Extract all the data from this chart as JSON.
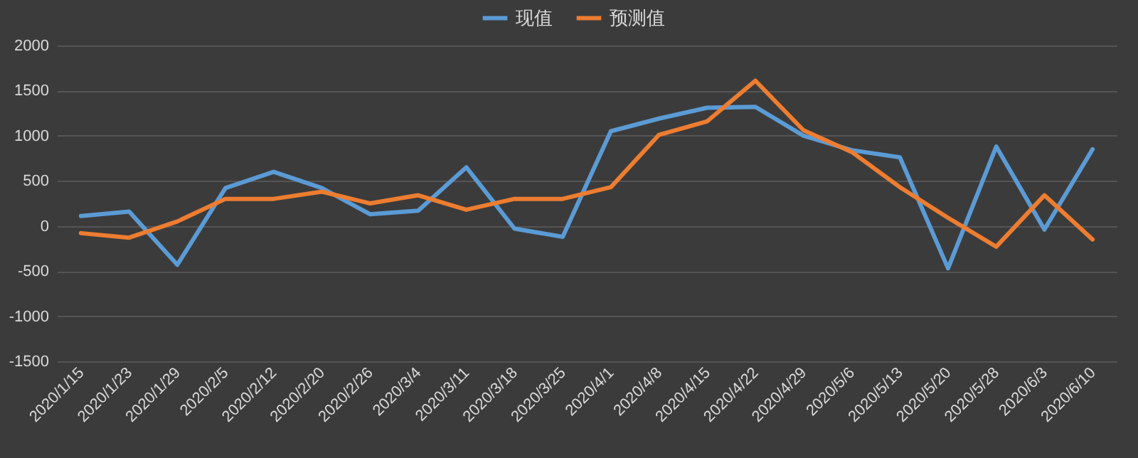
{
  "chart_data": {
    "type": "line",
    "categories": [
      "2020/1/15",
      "2020/1/23",
      "2020/1/29",
      "2020/2/5",
      "2020/2/12",
      "2020/2/20",
      "2020/2/26",
      "2020/3/4",
      "2020/3/11",
      "2020/3/18",
      "2020/3/25",
      "2020/4/1",
      "2020/4/8",
      "2020/4/15",
      "2020/4/22",
      "2020/4/29",
      "2020/5/6",
      "2020/5/13",
      "2020/5/20",
      "2020/5/28",
      "2020/6/3",
      "2020/6/10"
    ],
    "series": [
      {
        "name": "现值",
        "color": "#5b9bd5",
        "values": [
          110,
          160,
          -430,
          420,
          600,
          420,
          130,
          170,
          650,
          -30,
          -120,
          1050,
          1190,
          1310,
          1320,
          1000,
          840,
          760,
          -470,
          880,
          -40,
          850
        ]
      },
      {
        "name": "预测值",
        "color": "#ed7d31",
        "values": [
          -80,
          -130,
          50,
          300,
          300,
          380,
          250,
          340,
          180,
          300,
          300,
          430,
          1010,
          1160,
          1610,
          1060,
          820,
          430,
          90,
          -230,
          340,
          -150
        ]
      }
    ],
    "ylim": [
      -1500,
      2000
    ],
    "yticks": [
      -1500,
      -1000,
      -500,
      0,
      500,
      1000,
      1500,
      2000
    ],
    "grid": "y",
    "legend": "top",
    "marker": "none",
    "line_style": "solid"
  }
}
